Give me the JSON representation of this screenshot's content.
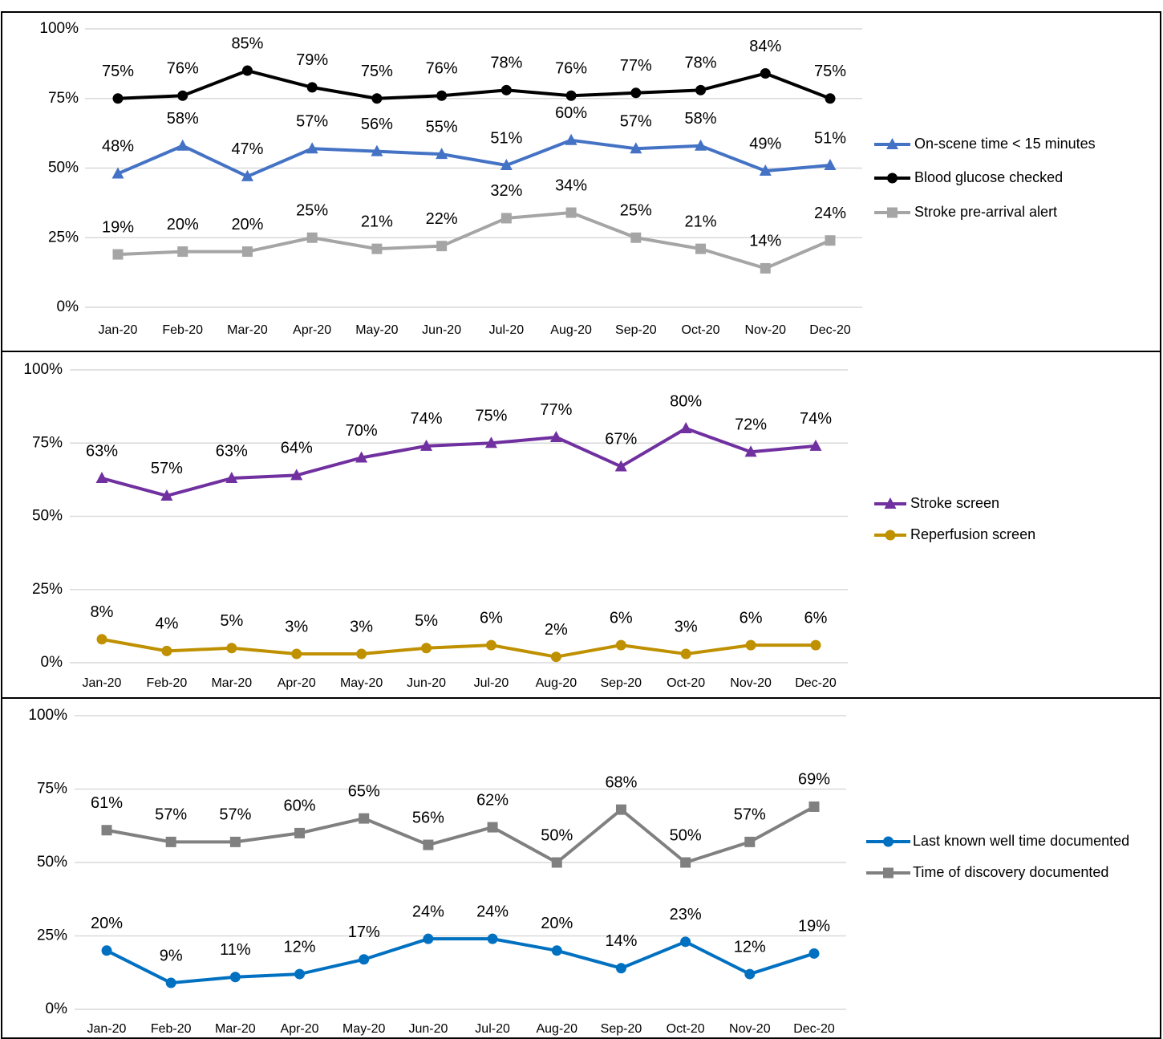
{
  "chart_data": [
    {
      "type": "line",
      "categories": [
        "Jan-20",
        "Feb-20",
        "Mar-20",
        "Apr-20",
        "May-20",
        "Jun-20",
        "Jul-20",
        "Aug-20",
        "Sep-20",
        "Oct-20",
        "Nov-20",
        "Dec-20"
      ],
      "ylim": [
        0,
        100
      ],
      "yticks": [
        {
          "value": 0,
          "label": "0%"
        },
        {
          "value": 25,
          "label": "25%"
        },
        {
          "value": 50,
          "label": "50%"
        },
        {
          "value": 75,
          "label": "75%"
        },
        {
          "value": 100,
          "label": "100%"
        }
      ],
      "grid": true,
      "legend": "right",
      "series": [
        {
          "name": "On-scene time < 15 minutes",
          "color": "#4472c4",
          "marker": "triangle",
          "values": [
            48,
            58,
            47,
            57,
            56,
            55,
            51,
            60,
            57,
            58,
            49,
            51
          ],
          "value_labels": [
            "48%",
            "58%",
            "47%",
            "57%",
            "56%",
            "55%",
            "51%",
            "60%",
            "57%",
            "58%",
            "49%",
            "51%"
          ]
        },
        {
          "name": "Blood glucose checked",
          "color": "#000000",
          "marker": "circle",
          "values": [
            75,
            76,
            85,
            79,
            75,
            76,
            78,
            76,
            77,
            78,
            84,
            75
          ],
          "value_labels": [
            "75%",
            "76%",
            "85%",
            "79%",
            "75%",
            "76%",
            "78%",
            "76%",
            "77%",
            "78%",
            "84%",
            "75%"
          ]
        },
        {
          "name": "Stroke pre-arrival alert",
          "color": "#a5a5a5",
          "marker": "square",
          "values": [
            19,
            20,
            20,
            25,
            21,
            22,
            32,
            34,
            25,
            21,
            14,
            24
          ],
          "value_labels": [
            "19%",
            "20%",
            "20%",
            "25%",
            "21%",
            "22%",
            "32%",
            "34%",
            "25%",
            "21%",
            "14%",
            "24%"
          ]
        }
      ]
    },
    {
      "type": "line",
      "categories": [
        "Jan-20",
        "Feb-20",
        "Mar-20",
        "Apr-20",
        "May-20",
        "Jun-20",
        "Jul-20",
        "Aug-20",
        "Sep-20",
        "Oct-20",
        "Nov-20",
        "Dec-20"
      ],
      "ylim": [
        0,
        100
      ],
      "yticks": [
        {
          "value": 0,
          "label": "0%"
        },
        {
          "value": 25,
          "label": "25%"
        },
        {
          "value": 50,
          "label": "50%"
        },
        {
          "value": 75,
          "label": "75%"
        },
        {
          "value": 100,
          "label": "100%"
        }
      ],
      "grid": true,
      "legend": "right",
      "series": [
        {
          "name": "Stroke screen",
          "color": "#7030a0",
          "marker": "triangle",
          "values": [
            63,
            57,
            63,
            64,
            70,
            74,
            75,
            77,
            67,
            80,
            72,
            74
          ],
          "value_labels": [
            "63%",
            "57%",
            "63%",
            "64%",
            "70%",
            "74%",
            "75%",
            "77%",
            "67%",
            "80%",
            "72%",
            "74%"
          ]
        },
        {
          "name": "Reperfusion screen",
          "color": "#bf9000",
          "marker": "circle",
          "values": [
            8,
            4,
            5,
            3,
            3,
            5,
            6,
            2,
            6,
            3,
            6,
            6
          ],
          "value_labels": [
            "8%",
            "4%",
            "5%",
            "3%",
            "3%",
            "5%",
            "6%",
            "2%",
            "6%",
            "3%",
            "6%",
            "6%"
          ]
        }
      ]
    },
    {
      "type": "line",
      "categories": [
        "Jan-20",
        "Feb-20",
        "Mar-20",
        "Apr-20",
        "May-20",
        "Jun-20",
        "Jul-20",
        "Aug-20",
        "Sep-20",
        "Oct-20",
        "Nov-20",
        "Dec-20"
      ],
      "ylim": [
        0,
        100
      ],
      "yticks": [
        {
          "value": 0,
          "label": "0%"
        },
        {
          "value": 25,
          "label": "25%"
        },
        {
          "value": 50,
          "label": "50%"
        },
        {
          "value": 75,
          "label": "75%"
        },
        {
          "value": 100,
          "label": "100%"
        }
      ],
      "grid": true,
      "legend": "right",
      "series": [
        {
          "name": "Last known well time documented",
          "color": "#0070c0",
          "marker": "circle",
          "values": [
            20,
            9,
            11,
            12,
            17,
            24,
            24,
            20,
            14,
            23,
            12,
            19
          ],
          "value_labels": [
            "20%",
            "9%",
            "11%",
            "12%",
            "17%",
            "24%",
            "24%",
            "20%",
            "14%",
            "23%",
            "12%",
            "19%"
          ]
        },
        {
          "name": "Time of discovery documented",
          "color": "#808080",
          "marker": "square",
          "values": [
            61,
            57,
            57,
            60,
            65,
            56,
            62,
            50,
            68,
            50,
            57,
            69
          ],
          "value_labels": [
            "61%",
            "57%",
            "57%",
            "60%",
            "65%",
            "56%",
            "62%",
            "50%",
            "68%",
            "50%",
            "57%",
            "69%"
          ]
        }
      ]
    }
  ]
}
